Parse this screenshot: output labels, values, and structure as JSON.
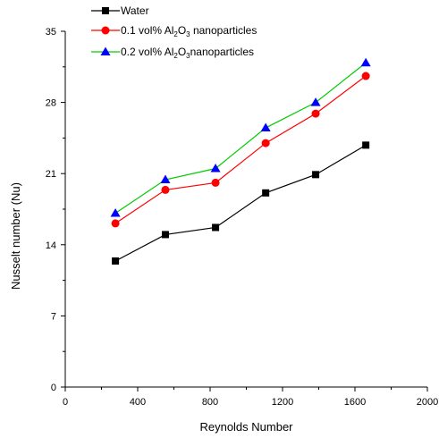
{
  "chart_data": {
    "type": "line",
    "title": "",
    "xlabel": "Reynolds Number",
    "ylabel": "Nusselt number (Nu)",
    "xlim": [
      0,
      2000
    ],
    "ylim": [
      0,
      35
    ],
    "xticks": [
      0,
      400,
      800,
      1200,
      1600,
      2000
    ],
    "yticks": [
      0,
      7,
      14,
      21,
      28,
      35
    ],
    "x": [
      277,
      553,
      830,
      1107,
      1383,
      1660
    ],
    "grid": false,
    "legend_position": "top-left",
    "series": [
      {
        "name": "Water",
        "marker": "square",
        "line_color": "#000000",
        "marker_color": "#000000",
        "legend_parts": [
          {
            "t": "Water",
            "sub": false
          }
        ],
        "values": [
          12.4,
          15.0,
          15.7,
          19.1,
          20.9,
          23.8
        ]
      },
      {
        "name": "0.1 vol% Al2O3 nanoparticles",
        "marker": "circle",
        "line_color": "#ff0000",
        "marker_color": "#ff0000",
        "legend_parts": [
          {
            "t": "0.1 vol% Al",
            "sub": false
          },
          {
            "t": "2",
            "sub": true
          },
          {
            "t": "O",
            "sub": false
          },
          {
            "t": "3",
            "sub": true
          },
          {
            "t": " nanoparticles",
            "sub": false
          }
        ],
        "values": [
          16.1,
          19.4,
          20.1,
          24.0,
          26.9,
          30.6
        ]
      },
      {
        "name": "0.2 vol% Al2O3nanoparticles",
        "marker": "triangle",
        "line_color": "#00cc00",
        "marker_color": "#0000ff",
        "legend_parts": [
          {
            "t": "0.2 vol% Al",
            "sub": false
          },
          {
            "t": "2",
            "sub": true
          },
          {
            "t": "O",
            "sub": false
          },
          {
            "t": "3",
            "sub": true
          },
          {
            "t": "nanoparticles",
            "sub": false
          }
        ],
        "values": [
          17.1,
          20.4,
          21.5,
          25.5,
          28.0,
          31.9
        ]
      }
    ]
  }
}
